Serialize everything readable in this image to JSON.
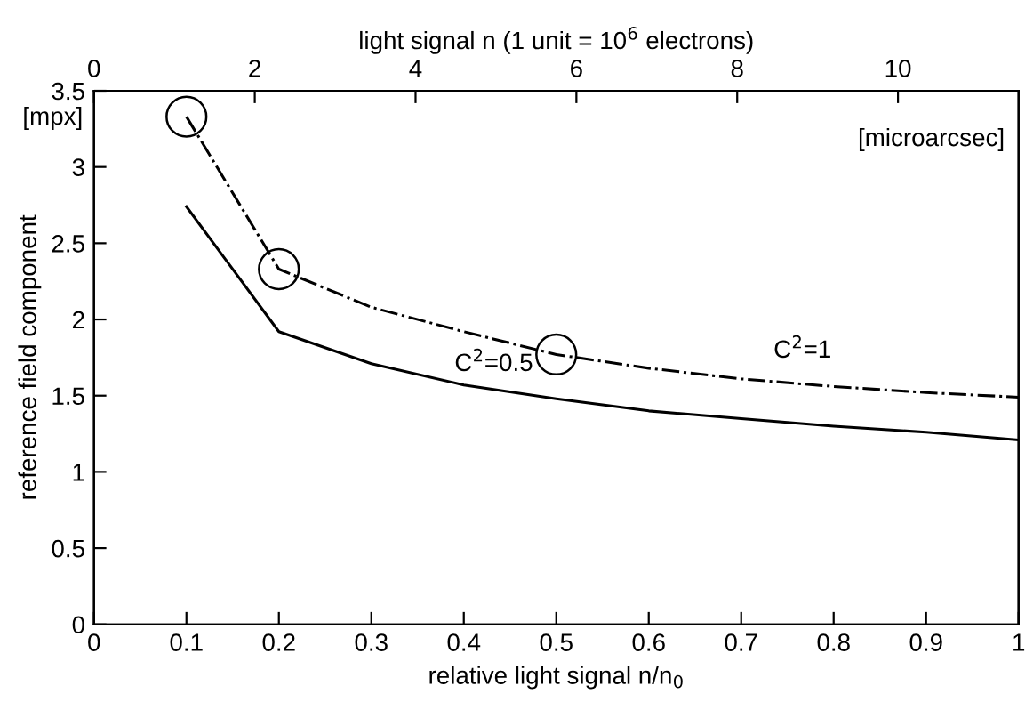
{
  "chart_data": {
    "type": "line",
    "xlabel": "relative light signal n/n$_{0}$",
    "ylabel": "reference field component",
    "x2label": "light signal n (1 unit = 10$^{6}$ electrons)",
    "xlim": [
      0,
      1
    ],
    "xticks": [
      0,
      0.1,
      0.2,
      0.3,
      0.4,
      0.5,
      0.6,
      0.7,
      0.8,
      0.9,
      1
    ],
    "ylim": [
      0,
      3.5
    ],
    "yticks": [
      0,
      0.5,
      1,
      1.5,
      2,
      2.5,
      3,
      3.5
    ],
    "x2lim": [
      0,
      11.5
    ],
    "x2ticks": [
      0,
      2,
      4,
      6,
      8,
      10
    ],
    "x": [
      0.1,
      0.2,
      0.3,
      0.4,
      0.5,
      0.6,
      0.7,
      0.8,
      0.9,
      1
    ],
    "series": [
      {
        "color": "#000000",
        "line_style": "dashdot",
        "marker": "none",
        "values": [
          3.33,
          2.33,
          2.08,
          1.92,
          1.77,
          1.68,
          1.61,
          1.56,
          1.52,
          1.49
        ]
      },
      {
        "color": "#000000",
        "line_style": "solid",
        "marker": "none",
        "values": [
          2.74,
          1.92,
          1.71,
          1.57,
          1.48,
          1.4,
          1.35,
          1.3,
          1.26,
          1.21
        ]
      },
      {
        "type": "scatter",
        "color": "#000000",
        "marker": "circle",
        "x": [
          0.1,
          0.2,
          0.5
        ],
        "values": [
          3.33,
          2.33,
          1.77
        ]
      }
    ],
    "annotations": [
      "C$^{2}$=1",
      "C$^{2}$=0.5",
      "[mpx]",
      "[microarcsec]"
    ],
    "grid": false,
    "legend": false
  }
}
